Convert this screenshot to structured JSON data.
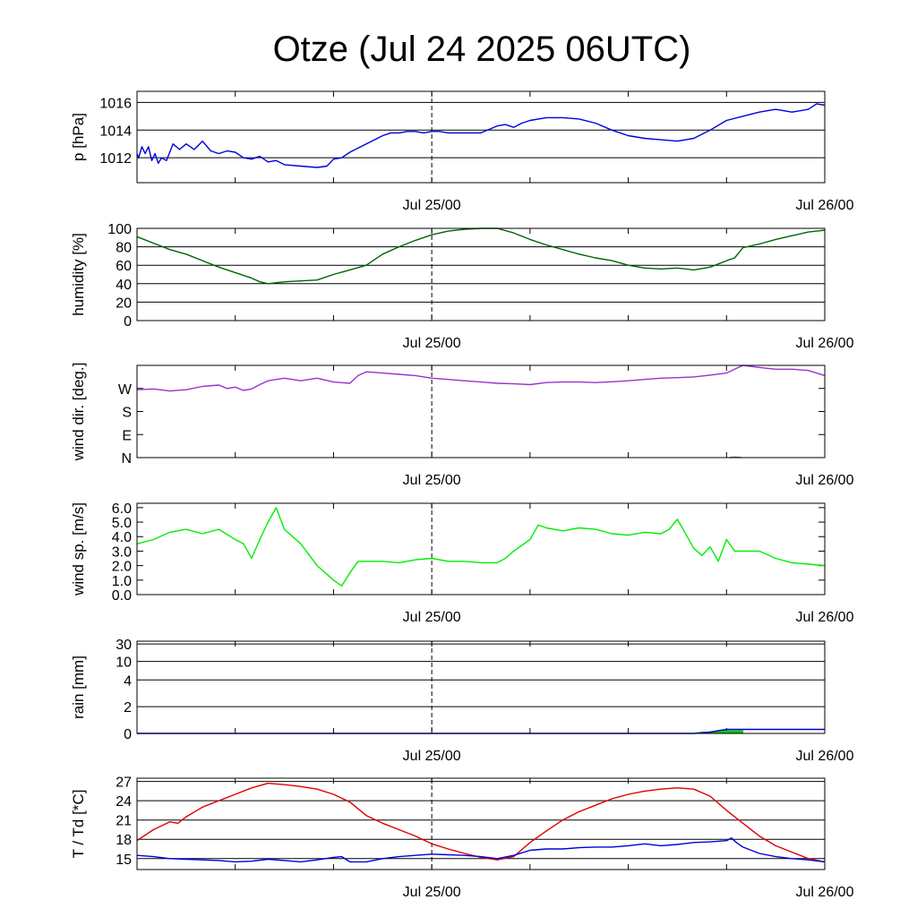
{
  "title": "Otze (Jul 24 2025 06UTC)",
  "x_ticks": [
    {
      "label": "Jul 25/00",
      "hour": 18
    },
    {
      "label": "Jul 26/00",
      "hour": 42
    }
  ],
  "x_range_hours": [
    0,
    42
  ],
  "chart_data": [
    {
      "type": "line",
      "id": "pressure",
      "ylabel": "p [hPa]",
      "ylim": [
        1010.2,
        1016.8
      ],
      "yticks": [
        {
          "v": 1012,
          "label": "1012"
        },
        {
          "v": 1014,
          "label": "1014"
        },
        {
          "v": 1016,
          "label": "1016"
        }
      ],
      "grid": true,
      "series": [
        {
          "color": "#0000dd",
          "x": [
            0,
            0.1,
            0.3,
            0.5,
            0.7,
            0.9,
            1.1,
            1.3,
            1.5,
            1.8,
            2.2,
            2.6,
            3.0,
            3.5,
            4.0,
            4.5,
            5.0,
            5.5,
            6.0,
            6.5,
            7.0,
            7.5,
            8.0,
            8.5,
            9.0,
            10.0,
            11.0,
            11.6,
            12.0,
            12.5,
            13.0,
            14.0,
            15.0,
            15.5,
            16.0,
            16.5,
            17.0,
            17.5,
            18.0,
            18.5,
            19.0,
            20.0,
            21.0,
            22.0,
            22.5,
            23.0,
            23.5,
            24.0,
            25.0,
            26.0,
            27.0,
            28.0,
            29.0,
            30.0,
            31.0,
            32.0,
            33.0,
            34.0,
            35.0,
            36.0,
            37.0,
            38.0,
            39.0,
            40.0,
            41.0,
            41.5,
            42.0
          ],
          "y": [
            1012.3,
            1012.0,
            1012.8,
            1012.3,
            1012.8,
            1011.8,
            1012.3,
            1011.6,
            1012.0,
            1011.8,
            1013.0,
            1012.6,
            1013.0,
            1012.6,
            1013.2,
            1012.5,
            1012.3,
            1012.5,
            1012.4,
            1012.0,
            1011.9,
            1012.1,
            1011.7,
            1011.8,
            1011.5,
            1011.4,
            1011.3,
            1011.4,
            1011.9,
            1012.0,
            1012.4,
            1013.0,
            1013.6,
            1013.8,
            1013.8,
            1013.9,
            1013.9,
            1013.8,
            1013.9,
            1013.9,
            1013.8,
            1013.8,
            1013.8,
            1014.3,
            1014.4,
            1014.2,
            1014.5,
            1014.7,
            1014.9,
            1014.9,
            1014.8,
            1014.5,
            1014.0,
            1013.6,
            1013.4,
            1013.3,
            1013.2,
            1013.4,
            1014.0,
            1014.7,
            1015.0,
            1015.3,
            1015.5,
            1015.3,
            1015.5,
            1015.9,
            1015.8
          ]
        }
      ]
    },
    {
      "type": "line",
      "id": "humidity",
      "ylabel": "humidity [%]",
      "ylim": [
        0,
        100
      ],
      "yticks": [
        {
          "v": 0,
          "label": "0"
        },
        {
          "v": 20,
          "label": "20"
        },
        {
          "v": 40,
          "label": "40"
        },
        {
          "v": 60,
          "label": "60"
        },
        {
          "v": 80,
          "label": "80"
        },
        {
          "v": 100,
          "label": "100"
        }
      ],
      "grid": true,
      "series": [
        {
          "color": "#006400",
          "x": [
            0,
            1,
            2,
            2.8,
            3,
            4,
            5,
            6,
            7,
            7.5,
            8,
            9,
            10,
            11,
            12,
            13,
            14,
            15,
            16,
            17,
            18,
            19,
            20,
            21,
            22,
            23,
            24,
            25,
            26,
            27,
            28,
            29,
            30,
            31,
            32,
            33,
            34,
            35,
            36,
            36.5,
            37,
            38,
            39,
            40,
            41,
            42
          ],
          "y": [
            91,
            84,
            77,
            73,
            72,
            65,
            58,
            52,
            46,
            42,
            40,
            42,
            43,
            44,
            50,
            55,
            60,
            72,
            80,
            87,
            93,
            97,
            99,
            100,
            100,
            95,
            88,
            82,
            77,
            72,
            68,
            65,
            60,
            57,
            56,
            57,
            55,
            58,
            65,
            68,
            79,
            83,
            88,
            92,
            96,
            98
          ]
        }
      ]
    },
    {
      "type": "line",
      "id": "wind_direction",
      "ylabel": "wind dir. [deg.]",
      "ylim": [
        0,
        360
      ],
      "yticks": [
        {
          "v": 0,
          "label": "N"
        },
        {
          "v": 90,
          "label": "E"
        },
        {
          "v": 180,
          "label": "S"
        },
        {
          "v": 270,
          "label": "W"
        }
      ],
      "grid": false,
      "series": [
        {
          "color": "#9932cc",
          "x": [
            0,
            1,
            2,
            3,
            4,
            5,
            5.5,
            6,
            6.5,
            7,
            7.5,
            8,
            9,
            10,
            11,
            12,
            13,
            13.5,
            14,
            15,
            16,
            17,
            18,
            19,
            20,
            21,
            22,
            23,
            24,
            25,
            26,
            27,
            28,
            29,
            30,
            31,
            32,
            33,
            34,
            35,
            36,
            36.5,
            37,
            38,
            39,
            40,
            41,
            42
          ],
          "y": [
            265,
            268,
            260,
            265,
            278,
            283,
            270,
            275,
            262,
            268,
            285,
            300,
            310,
            300,
            310,
            295,
            290,
            320,
            335,
            330,
            325,
            320,
            310,
            305,
            300,
            295,
            290,
            288,
            285,
            293,
            295,
            295,
            293,
            296,
            300,
            305,
            310,
            312,
            315,
            322,
            330,
            345,
            360,
            352,
            345,
            345,
            340,
            320
          ]
        },
        {
          "color": "#9932cc",
          "x": [
            36.2,
            36.5,
            36.9
          ],
          "y": [
            0,
            2,
            0
          ]
        }
      ]
    },
    {
      "type": "line",
      "id": "wind_speed",
      "ylabel": "wind sp. [m/s]",
      "ylim": [
        0,
        6.3
      ],
      "yticks": [
        {
          "v": 0,
          "label": "0.0"
        },
        {
          "v": 1,
          "label": "1.0"
        },
        {
          "v": 2,
          "label": "2.0"
        },
        {
          "v": 3,
          "label": "3.0"
        },
        {
          "v": 4,
          "label": "4.0"
        },
        {
          "v": 5,
          "label": "5.0"
        },
        {
          "v": 6,
          "label": "6.0"
        }
      ],
      "grid": false,
      "series": [
        {
          "color": "#00ee00",
          "x": [
            0,
            1,
            2,
            3,
            4,
            5,
            6,
            6.5,
            7,
            7.5,
            8,
            8.5,
            9,
            10,
            11,
            12,
            12.5,
            13,
            13.5,
            14,
            15,
            16,
            17,
            18,
            19,
            20,
            21,
            22,
            22.5,
            23,
            24,
            24.5,
            25,
            26,
            27,
            28,
            29,
            30,
            31,
            32,
            32.5,
            33,
            34,
            34.5,
            35,
            35.5,
            36,
            36.5,
            37,
            38,
            39,
            40,
            41,
            42
          ],
          "y": [
            3.5,
            3.8,
            4.3,
            4.5,
            4.2,
            4.5,
            3.8,
            3.5,
            2.5,
            3.8,
            5.0,
            6.0,
            4.5,
            3.5,
            2.0,
            1.0,
            0.6,
            1.5,
            2.3,
            2.3,
            2.3,
            2.2,
            2.4,
            2.5,
            2.3,
            2.3,
            2.2,
            2.2,
            2.5,
            3.0,
            3.8,
            4.8,
            4.6,
            4.4,
            4.6,
            4.5,
            4.2,
            4.1,
            4.3,
            4.2,
            4.5,
            5.2,
            3.2,
            2.7,
            3.3,
            2.3,
            3.8,
            3.0,
            3.0,
            3.0,
            2.5,
            2.2,
            2.1,
            2.0
          ]
        }
      ]
    },
    {
      "type": "area",
      "id": "rain",
      "ylabel": "rain [mm]",
      "ylim": [
        0,
        30
      ],
      "yticks": [
        {
          "v": 0,
          "label": "0"
        },
        {
          "v": 2,
          "label": "2"
        },
        {
          "v": 4,
          "label": "4"
        },
        {
          "v": 10,
          "label": "10"
        },
        {
          "v": 30,
          "label": "30"
        }
      ],
      "grid": true,
      "scale": "nonlinear",
      "series": [
        {
          "color": "#00cc00",
          "kind": "area",
          "x": [
            34,
            34.5,
            35,
            35.5,
            36,
            36.5,
            37
          ],
          "y": [
            0,
            0.1,
            0.1,
            0.2,
            0.2,
            0.2,
            0.2
          ]
        },
        {
          "color": "#0000dd",
          "kind": "line",
          "x": [
            0,
            34,
            34.5,
            35,
            35.5,
            36,
            36.5,
            37,
            38,
            42
          ],
          "y": [
            0,
            0,
            0.05,
            0.1,
            0.2,
            0.3,
            0.3,
            0.3,
            0.3,
            0.3
          ]
        }
      ]
    },
    {
      "type": "line",
      "id": "temperature",
      "ylabel": "T / Td [*C]",
      "ylim": [
        13.3,
        27.5
      ],
      "yticks": [
        {
          "v": 15,
          "label": "15"
        },
        {
          "v": 18,
          "label": "18"
        },
        {
          "v": 21,
          "label": "21"
        },
        {
          "v": 24,
          "label": "24"
        },
        {
          "v": 27,
          "label": "27"
        }
      ],
      "grid": true,
      "series": [
        {
          "color": "#dd0000",
          "name": "T",
          "x": [
            0,
            1,
            2,
            2.5,
            3,
            4,
            5,
            6,
            7,
            8,
            9,
            10,
            11,
            12,
            13,
            14,
            15,
            16,
            17,
            18,
            19,
            20,
            21,
            22,
            23,
            24,
            25,
            26,
            27,
            28,
            29,
            30,
            31,
            32,
            33,
            34,
            35,
            36,
            37,
            38,
            39,
            40,
            41,
            42
          ],
          "y": [
            17.8,
            19.5,
            20.7,
            20.5,
            21.5,
            23.0,
            24.0,
            25.0,
            26.0,
            26.7,
            26.5,
            26.2,
            25.8,
            25.0,
            23.8,
            21.7,
            20.5,
            19.5,
            18.5,
            17.3,
            16.5,
            15.8,
            15.2,
            14.8,
            15.3,
            17.5,
            19.3,
            21.0,
            22.3,
            23.3,
            24.3,
            25.0,
            25.5,
            25.8,
            26.0,
            25.8,
            24.7,
            22.5,
            20.5,
            18.5,
            17.0,
            16.0,
            15.0,
            14.5
          ]
        },
        {
          "color": "#0000dd",
          "name": "Td",
          "x": [
            0,
            1,
            2,
            3,
            4,
            5,
            6,
            7,
            8,
            9,
            10,
            11,
            12,
            12.5,
            13,
            14,
            15,
            16,
            17,
            18,
            19,
            20,
            21,
            22,
            23,
            24,
            25,
            26,
            27,
            28,
            29,
            30,
            31,
            32,
            33,
            34,
            35,
            36,
            36.3,
            36.6,
            37,
            38,
            39,
            40,
            41,
            42
          ],
          "y": [
            15.5,
            15.3,
            15.0,
            14.9,
            14.8,
            14.7,
            14.5,
            14.6,
            14.9,
            14.7,
            14.5,
            14.8,
            15.2,
            15.3,
            14.5,
            14.5,
            15.0,
            15.3,
            15.5,
            15.7,
            15.6,
            15.5,
            15.3,
            15.0,
            15.5,
            16.3,
            16.5,
            16.5,
            16.7,
            16.8,
            16.8,
            17.0,
            17.3,
            17.0,
            17.2,
            17.5,
            17.6,
            17.8,
            18.2,
            17.5,
            16.8,
            15.8,
            15.3,
            15.0,
            14.8,
            14.5
          ]
        }
      ]
    }
  ]
}
